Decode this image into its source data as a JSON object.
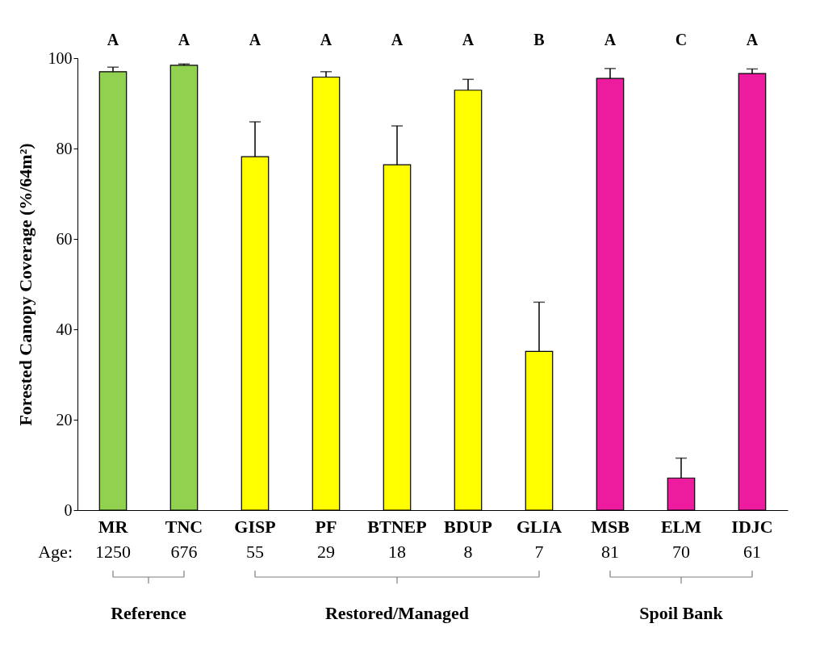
{
  "chart_data": {
    "type": "bar",
    "ylabel": "Forested Canopy Coverage (%/64m²)",
    "categories": [
      "MR",
      "TNC",
      "GISP",
      "PF",
      "BTNEP",
      "BDUP",
      "GLIA",
      "MSB",
      "ELM",
      "IDJC"
    ],
    "values": [
      97,
      98.4,
      78.2,
      95.8,
      76.4,
      92.9,
      35.1,
      95.5,
      7.1,
      96.6
    ],
    "colors": [
      "#92d050",
      "#92d050",
      "#ffff00",
      "#ffff00",
      "#ffff00",
      "#ffff00",
      "#ffff00",
      "#ed1c9f",
      "#ed1c9f",
      "#ed1c9f"
    ],
    "errors": [
      [
        97,
        98
      ],
      [
        98.4,
        98.7
      ],
      [
        78.2,
        85.9
      ],
      [
        95.8,
        97
      ],
      [
        76.4,
        85
      ],
      [
        92.9,
        95.3
      ],
      [
        35.1,
        46
      ],
      [
        95.5,
        97.7
      ],
      [
        7.1,
        11.5
      ],
      [
        96.6,
        97.6
      ]
    ],
    "ylim": [
      0,
      100
    ],
    "yticks": [
      0,
      20,
      40,
      60,
      80,
      100
    ],
    "grid": false,
    "annotations": [
      "A",
      "A",
      "A",
      "A",
      "A",
      "A",
      "B",
      "A",
      "C",
      "A",
      "Age:",
      "1250",
      "676",
      "55",
      "29",
      "18",
      "8",
      "7",
      "81",
      "70",
      "61",
      "Reference",
      "Restored/Managed",
      "Spoil Bank"
    ]
  }
}
